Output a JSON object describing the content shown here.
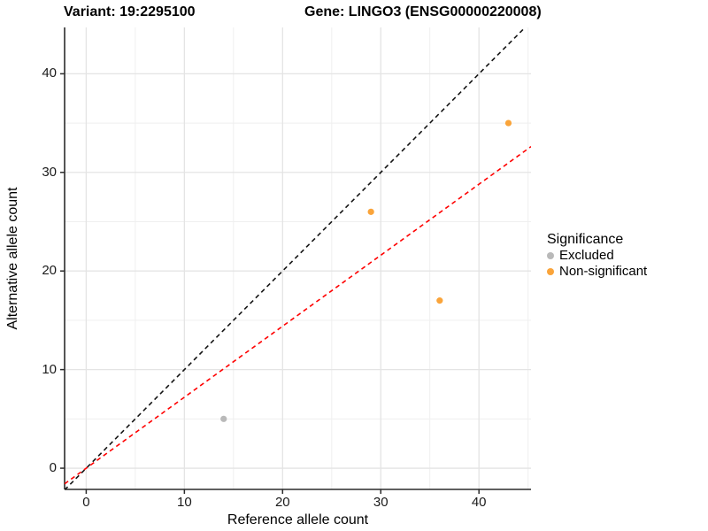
{
  "chart_data": {
    "type": "scatter",
    "variant_label": "Variant: 19:2295100",
    "gene_label": "Gene: LINGO3 (ENSG00000220008)",
    "xlabel": "Reference allele count",
    "ylabel": "Alternative allele count",
    "xlim": [
      -2.2,
      45.3
    ],
    "ylim": [
      -2.15,
      44.7
    ],
    "xticks": [
      0,
      10,
      20,
      30,
      40
    ],
    "yticks": [
      0,
      10,
      20,
      30,
      40
    ],
    "minor_gridlines_x": [
      5,
      15,
      25,
      35,
      45
    ],
    "minor_gridlines_y": [
      5,
      15,
      25,
      35,
      45
    ],
    "grid": true,
    "legend_position": "right",
    "series": [
      {
        "name": "Excluded",
        "color": "#B9B9B9",
        "points": [
          {
            "x": 14,
            "y": 5
          }
        ]
      },
      {
        "name": "Non-significant",
        "color": "#FAA43A",
        "points": [
          {
            "x": 29,
            "y": 26
          },
          {
            "x": 36,
            "y": 17
          },
          {
            "x": 43,
            "y": 35
          }
        ]
      }
    ],
    "reference_lines": [
      {
        "name": "identity-line",
        "slope": 1,
        "intercept": 0,
        "color": "#141414",
        "style": "dashed"
      },
      {
        "name": "expected-ratio-line",
        "slope": 0.72,
        "intercept": 0,
        "color": "#FF0000",
        "style": "dashed"
      }
    ],
    "legend": {
      "title": "Significance",
      "entries": [
        {
          "label": "Excluded",
          "color": "#B9B9B9"
        },
        {
          "label": "Non-significant",
          "color": "#FAA43A"
        }
      ]
    },
    "colors": {
      "axis_line": "#2b2b2b",
      "major_grid": "#E4E4E4",
      "minor_grid": "#EFEFEF"
    }
  }
}
